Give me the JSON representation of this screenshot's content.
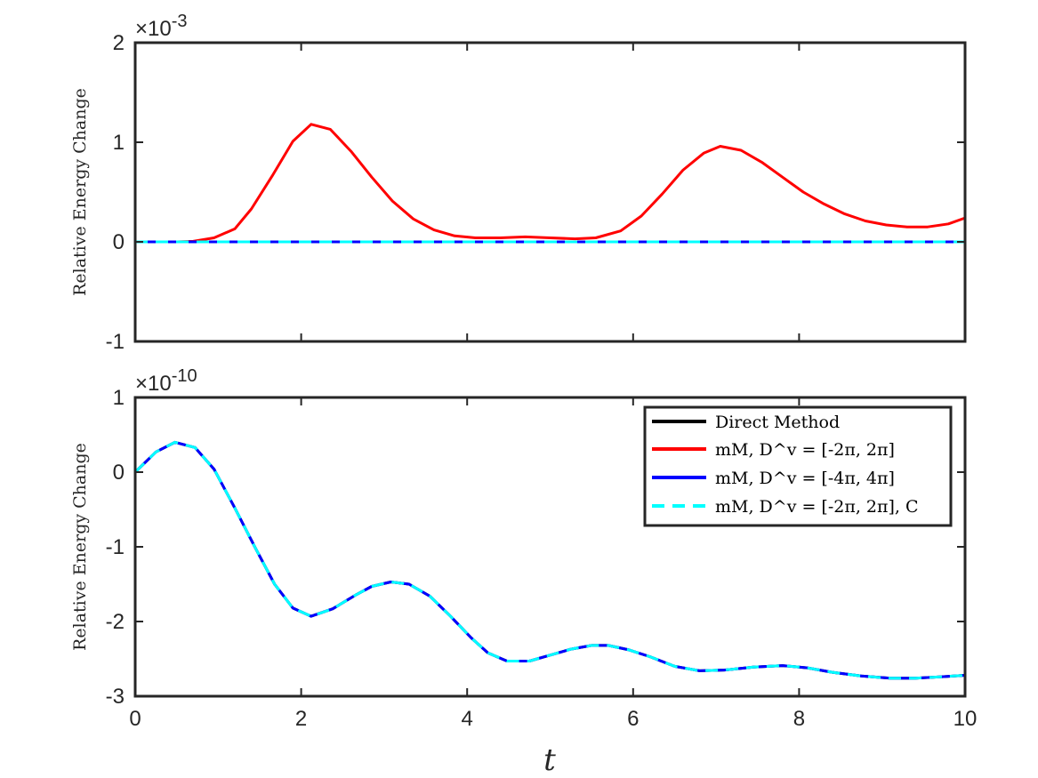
{
  "chart_data": [
    {
      "type": "line",
      "title": "",
      "xlabel": "",
      "ylabel": "Relative Energy Change",
      "exponent_base": "×10",
      "exponent_power": "-3",
      "xlim": [
        0,
        10
      ],
      "ylim": [
        -1,
        2
      ],
      "x_ticks": [
        "0",
        "2",
        "4",
        "6",
        "8",
        "10"
      ],
      "y_ticks": [
        {
          "value": 2,
          "label": "2"
        },
        {
          "value": 1,
          "label": "1"
        },
        {
          "value": 0,
          "label": "0"
        },
        {
          "value": -1,
          "label": "-1"
        }
      ],
      "grid": false,
      "series": [
        {
          "name": "mM, D^v = [-2π, 2π]",
          "color": "#ff0000",
          "dash": false,
          "width": 3,
          "points": [
            [
              0,
              0
            ],
            [
              0.2,
              0
            ],
            [
              0.5,
              0
            ],
            [
              0.7,
              0.005
            ],
            [
              0.95,
              0.04
            ],
            [
              1.2,
              0.13
            ],
            [
              1.4,
              0.33
            ],
            [
              1.65,
              0.66
            ],
            [
              1.9,
              1.01
            ],
            [
              2.12,
              1.18
            ],
            [
              2.35,
              1.13
            ],
            [
              2.6,
              0.91
            ],
            [
              2.85,
              0.65
            ],
            [
              3.1,
              0.41
            ],
            [
              3.35,
              0.23
            ],
            [
              3.6,
              0.12
            ],
            [
              3.85,
              0.06
            ],
            [
              4.1,
              0.04
            ],
            [
              4.4,
              0.04
            ],
            [
              4.7,
              0.05
            ],
            [
              5.0,
              0.04
            ],
            [
              5.3,
              0.03
            ],
            [
              5.55,
              0.04
            ],
            [
              5.85,
              0.11
            ],
            [
              6.1,
              0.26
            ],
            [
              6.35,
              0.48
            ],
            [
              6.6,
              0.72
            ],
            [
              6.85,
              0.89
            ],
            [
              7.05,
              0.96
            ],
            [
              7.3,
              0.92
            ],
            [
              7.55,
              0.8
            ],
            [
              7.8,
              0.65
            ],
            [
              8.05,
              0.5
            ],
            [
              8.3,
              0.38
            ],
            [
              8.55,
              0.28
            ],
            [
              8.8,
              0.21
            ],
            [
              9.05,
              0.17
            ],
            [
              9.3,
              0.15
            ],
            [
              9.55,
              0.15
            ],
            [
              9.8,
              0.18
            ],
            [
              10,
              0.24
            ]
          ]
        },
        {
          "name": "Direct Method",
          "color": "#000000",
          "dash": false,
          "width": 3,
          "points": [
            [
              0,
              0
            ],
            [
              10,
              0
            ]
          ]
        },
        {
          "name": "mM, D^v = [-4π, 4π]",
          "color": "#0000ff",
          "dash": false,
          "width": 3,
          "points": [
            [
              0,
              0
            ],
            [
              10,
              0
            ]
          ]
        },
        {
          "name": "mM, D^v = [-2π, 2π], C",
          "color": "#00ffff",
          "dash": true,
          "width": 3,
          "points": [
            [
              0,
              0
            ],
            [
              10,
              0
            ]
          ]
        }
      ]
    },
    {
      "type": "line",
      "title": "",
      "xlabel": "t",
      "ylabel": "Relative Energy Change",
      "exponent_base": "×10",
      "exponent_power": "-10",
      "xlim": [
        0,
        10
      ],
      "ylim": [
        -3,
        1
      ],
      "x_ticks": [
        "0",
        "2",
        "4",
        "6",
        "8",
        "10"
      ],
      "y_ticks": [
        {
          "value": 1,
          "label": "1"
        },
        {
          "value": 0,
          "label": "0"
        },
        {
          "value": -1,
          "label": "-1"
        },
        {
          "value": -2,
          "label": "-2"
        },
        {
          "value": -3,
          "label": "-3"
        }
      ],
      "grid": false,
      "legend_position": "top-right",
      "series": [
        {
          "name": "Direct Method",
          "color": "#000000",
          "dash": false,
          "width": 3,
          "points": [
            [
              0,
              0
            ],
            [
              0.25,
              0.27
            ],
            [
              0.48,
              0.4
            ],
            [
              0.72,
              0.33
            ],
            [
              0.95,
              0.04
            ],
            [
              1.2,
              -0.48
            ],
            [
              1.45,
              -1.02
            ],
            [
              1.68,
              -1.5
            ],
            [
              1.9,
              -1.82
            ],
            [
              2.12,
              -1.93
            ],
            [
              2.38,
              -1.83
            ],
            [
              2.65,
              -1.65
            ],
            [
              2.85,
              -1.53
            ],
            [
              3.08,
              -1.47
            ],
            [
              3.3,
              -1.5
            ],
            [
              3.55,
              -1.66
            ],
            [
              3.8,
              -1.93
            ],
            [
              4.05,
              -2.22
            ],
            [
              4.25,
              -2.42
            ],
            [
              4.48,
              -2.53
            ],
            [
              4.75,
              -2.53
            ],
            [
              5.0,
              -2.45
            ],
            [
              5.25,
              -2.37
            ],
            [
              5.5,
              -2.32
            ],
            [
              5.7,
              -2.32
            ],
            [
              5.95,
              -2.38
            ],
            [
              6.2,
              -2.47
            ],
            [
              6.5,
              -2.6
            ],
            [
              6.8,
              -2.66
            ],
            [
              7.1,
              -2.65
            ],
            [
              7.45,
              -2.61
            ],
            [
              7.8,
              -2.59
            ],
            [
              8.1,
              -2.62
            ],
            [
              8.4,
              -2.68
            ],
            [
              8.75,
              -2.73
            ],
            [
              9.1,
              -2.76
            ],
            [
              9.4,
              -2.76
            ],
            [
              9.7,
              -2.74
            ],
            [
              10,
              -2.72
            ]
          ]
        },
        {
          "name": "mM, D^v = [-2π, 2π]",
          "color": "#ff0000",
          "dash": false,
          "width": 3,
          "points": [
            [
              0,
              0
            ],
            [
              0,
              1
            ]
          ]
        },
        {
          "name": "mM, D^v = [-4π, 4π]",
          "color": "#0000ff",
          "dash": false,
          "width": 3,
          "points": [
            [
              0,
              0
            ],
            [
              0.25,
              0.27
            ],
            [
              0.48,
              0.4
            ],
            [
              0.72,
              0.33
            ],
            [
              0.95,
              0.04
            ],
            [
              1.2,
              -0.48
            ],
            [
              1.45,
              -1.02
            ],
            [
              1.68,
              -1.5
            ],
            [
              1.9,
              -1.82
            ],
            [
              2.12,
              -1.93
            ],
            [
              2.38,
              -1.83
            ],
            [
              2.65,
              -1.65
            ],
            [
              2.85,
              -1.53
            ],
            [
              3.08,
              -1.47
            ],
            [
              3.3,
              -1.5
            ],
            [
              3.55,
              -1.66
            ],
            [
              3.8,
              -1.93
            ],
            [
              4.05,
              -2.22
            ],
            [
              4.25,
              -2.42
            ],
            [
              4.48,
              -2.53
            ],
            [
              4.75,
              -2.53
            ],
            [
              5.0,
              -2.45
            ],
            [
              5.25,
              -2.37
            ],
            [
              5.5,
              -2.32
            ],
            [
              5.7,
              -2.32
            ],
            [
              5.95,
              -2.38
            ],
            [
              6.2,
              -2.47
            ],
            [
              6.5,
              -2.6
            ],
            [
              6.8,
              -2.66
            ],
            [
              7.1,
              -2.65
            ],
            [
              7.45,
              -2.61
            ],
            [
              7.8,
              -2.59
            ],
            [
              8.1,
              -2.62
            ],
            [
              8.4,
              -2.68
            ],
            [
              8.75,
              -2.73
            ],
            [
              9.1,
              -2.76
            ],
            [
              9.4,
              -2.76
            ],
            [
              9.7,
              -2.74
            ],
            [
              10,
              -2.72
            ]
          ]
        },
        {
          "name": "mM, D^v = [-2π, 2π], C",
          "color": "#00ffff",
          "dash": true,
          "width": 3,
          "points": [
            [
              0,
              0
            ],
            [
              0.25,
              0.27
            ],
            [
              0.48,
              0.4
            ],
            [
              0.72,
              0.33
            ],
            [
              0.95,
              0.04
            ],
            [
              1.2,
              -0.48
            ],
            [
              1.45,
              -1.02
            ],
            [
              1.68,
              -1.5
            ],
            [
              1.9,
              -1.82
            ],
            [
              2.12,
              -1.93
            ],
            [
              2.38,
              -1.83
            ],
            [
              2.65,
              -1.65
            ],
            [
              2.85,
              -1.53
            ],
            [
              3.08,
              -1.47
            ],
            [
              3.3,
              -1.5
            ],
            [
              3.55,
              -1.66
            ],
            [
              3.8,
              -1.93
            ],
            [
              4.05,
              -2.22
            ],
            [
              4.25,
              -2.42
            ],
            [
              4.48,
              -2.53
            ],
            [
              4.75,
              -2.53
            ],
            [
              5.0,
              -2.45
            ],
            [
              5.25,
              -2.37
            ],
            [
              5.5,
              -2.32
            ],
            [
              5.7,
              -2.32
            ],
            [
              5.95,
              -2.38
            ],
            [
              6.2,
              -2.47
            ],
            [
              6.5,
              -2.6
            ],
            [
              6.8,
              -2.66
            ],
            [
              7.1,
              -2.65
            ],
            [
              7.45,
              -2.61
            ],
            [
              7.8,
              -2.59
            ],
            [
              8.1,
              -2.62
            ],
            [
              8.4,
              -2.68
            ],
            [
              8.75,
              -2.73
            ],
            [
              9.1,
              -2.76
            ],
            [
              9.4,
              -2.76
            ],
            [
              9.7,
              -2.74
            ],
            [
              10,
              -2.72
            ]
          ]
        }
      ],
      "legend": [
        {
          "label": "Direct Method",
          "color": "#000000",
          "dash": false
        },
        {
          "label": "mM, D^v = [-2π, 2π]",
          "color": "#ff0000",
          "dash": false
        },
        {
          "label": "mM, D^v = [-4π, 4π]",
          "color": "#0000ff",
          "dash": false
        },
        {
          "label": "mM, D^v = [-2π, 2π], C",
          "color": "#00ffff",
          "dash": true
        }
      ]
    }
  ]
}
